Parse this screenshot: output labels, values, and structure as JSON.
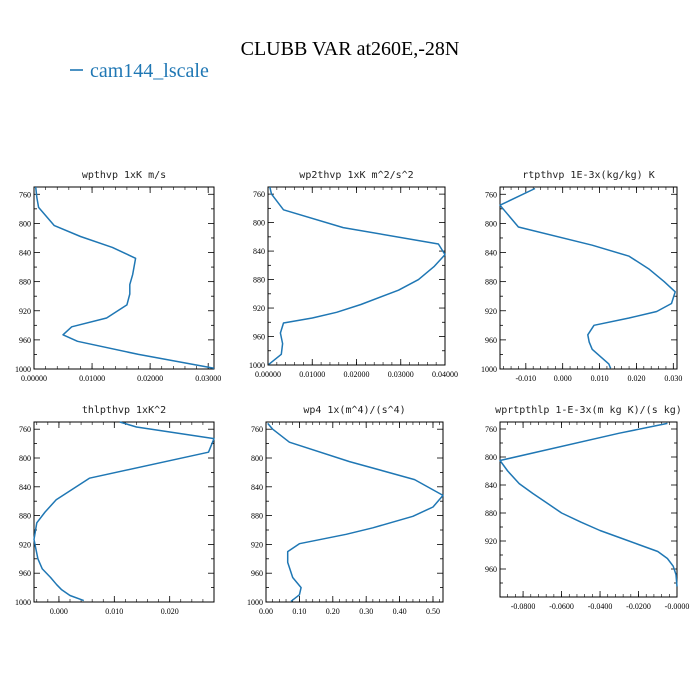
{
  "figure": {
    "title": "CLUBB VAR at260E,-28N",
    "legend": {
      "label": "cam144_lscale",
      "color": "#1f77b4",
      "placement": "top-left"
    }
  },
  "chart_data": [
    {
      "type": "line",
      "title": "wpthvp  1xK m/s",
      "xlim": [
        0,
        0.031
      ],
      "ylim": [
        1000,
        750
      ],
      "y_inverted": true,
      "x_ticks": [
        0,
        0.01,
        0.02,
        0.03
      ],
      "x_tick_labels": [
        "0.00000",
        "0.01000",
        "0.02000",
        "0.03000"
      ],
      "y_ticks": [
        760,
        800,
        840,
        880,
        920,
        960,
        1000
      ],
      "y_tick_labels": [
        "760",
        "800",
        "840",
        "880",
        "920",
        "960",
        "1000"
      ],
      "series": [
        {
          "x": [
            0.0003,
            0.0005,
            0.0008,
            0.0035,
            0.008,
            0.0135,
            0.0175,
            0.017,
            0.0165,
            0.0165,
            0.016,
            0.0125,
            0.0065,
            0.005,
            0.0075,
            0.018,
            0.031
          ],
          "y": [
            750,
            765,
            778,
            803,
            818,
            833,
            848,
            870,
            884,
            897,
            912,
            930,
            942,
            953,
            962,
            980,
            999
          ]
        }
      ]
    },
    {
      "type": "line",
      "title": "wp2thvp  1xK m^2/s^2",
      "xlim": [
        0,
        0.04
      ],
      "ylim": [
        1000,
        750
      ],
      "y_inverted": true,
      "x_ticks": [
        0,
        0.01,
        0.02,
        0.03,
        0.04
      ],
      "x_tick_labels": [
        "0.00000",
        "0.01000",
        "0.02000",
        "0.03000",
        "0.04000"
      ],
      "y_ticks": [
        760,
        800,
        840,
        880,
        920,
        960,
        1000
      ],
      "y_tick_labels": [
        "760",
        "800",
        "840",
        "880",
        "920",
        "960",
        "1000"
      ],
      "series": [
        {
          "x": [
            0.0004,
            0.0008,
            0.0035,
            0.017,
            0.0385,
            0.04,
            0.0375,
            0.034,
            0.0295,
            0.021,
            0.0155,
            0.01,
            0.0035,
            0.0028,
            0.0033,
            0.003,
            0.0002
          ],
          "y": [
            750,
            760,
            782,
            807,
            830,
            845,
            862,
            880,
            895,
            915,
            926,
            934,
            941,
            955,
            970,
            985,
            999
          ]
        }
      ]
    },
    {
      "type": "line",
      "title": "rtpthvp  1E-3x(kg/kg) K",
      "xlim": [
        -0.017,
        0.031
      ],
      "ylim": [
        1000,
        750
      ],
      "y_inverted": true,
      "x_ticks": [
        -0.01,
        0,
        0.01,
        0.02,
        0.03
      ],
      "x_tick_labels": [
        "-0.010",
        "0.000",
        "0.010",
        "0.020",
        "0.030"
      ],
      "y_ticks": [
        760,
        800,
        840,
        880,
        920,
        960,
        1000
      ],
      "y_tick_labels": [
        "760",
        "800",
        "840",
        "880",
        "920",
        "960",
        "1000"
      ],
      "series": [
        {
          "x": [
            -0.0075,
            -0.017,
            -0.012,
            0.008,
            0.018,
            0.0235,
            0.0275,
            0.0305,
            0.0295,
            0.0255,
            0.018,
            0.0085,
            0.0068,
            0.0072,
            0.008,
            0.0105,
            0.0125,
            0.013
          ],
          "y": [
            752,
            775,
            805,
            830,
            845,
            863,
            880,
            894,
            910,
            921,
            930,
            940,
            953,
            963,
            973,
            984,
            993,
            999
          ]
        }
      ]
    },
    {
      "type": "line",
      "title": "thlpthvp  1xK^2",
      "xlim": [
        -0.0045,
        0.028
      ],
      "ylim": [
        1000,
        750
      ],
      "y_inverted": true,
      "x_ticks": [
        0,
        0.01,
        0.02
      ],
      "x_tick_labels": [
        "0.000",
        "0.010",
        "0.020"
      ],
      "y_ticks": [
        760,
        800,
        840,
        880,
        920,
        960,
        1000
      ],
      "y_tick_labels": [
        "760",
        "800",
        "840",
        "880",
        "920",
        "960",
        "1000"
      ],
      "series": [
        {
          "x": [
            0.011,
            0.014,
            0.028,
            0.027,
            0.0055,
            -0.0005,
            -0.0025,
            -0.004,
            -0.0045,
            -0.0042,
            -0.0038,
            -0.003,
            -0.0015,
            -0.0004,
            0.0005,
            0.002,
            0.0045
          ],
          "y": [
            750,
            757,
            773,
            792,
            828,
            858,
            875,
            890,
            913,
            925,
            940,
            954,
            966,
            976,
            983,
            991,
            998
          ]
        }
      ]
    },
    {
      "type": "line",
      "title": "wp4   1x(m^4)/(s^4)",
      "xlim": [
        0,
        0.53
      ],
      "ylim": [
        1000,
        750
      ],
      "y_inverted": true,
      "x_ticks": [
        0,
        0.1,
        0.2,
        0.3,
        0.4,
        0.5
      ],
      "x_tick_labels": [
        "0.00",
        "0.10",
        "0.20",
        "0.30",
        "0.40",
        "0.50"
      ],
      "y_ticks": [
        760,
        800,
        840,
        880,
        920,
        960,
        1000
      ],
      "y_tick_labels": [
        "760",
        "800",
        "840",
        "880",
        "920",
        "960",
        "1000"
      ],
      "series": [
        {
          "x": [
            0.005,
            0.02,
            0.07,
            0.25,
            0.445,
            0.53,
            0.5,
            0.44,
            0.32,
            0.24,
            0.1,
            0.065,
            0.065,
            0.08,
            0.105,
            0.1,
            0.075
          ],
          "y": [
            752,
            760,
            778,
            805,
            830,
            852,
            868,
            881,
            897,
            906,
            919,
            930,
            945,
            966,
            980,
            990,
            999
          ]
        }
      ]
    },
    {
      "type": "line",
      "title": "wprtpthlp   1-E-3x(m kg K)/(s kg)",
      "xlim": [
        -0.092,
        0
      ],
      "ylim": [
        1000,
        750
      ],
      "y_inverted": true,
      "x_ticks": [
        -0.08,
        -0.06,
        -0.04,
        -0.02,
        0
      ],
      "x_tick_labels": [
        "-0.0800",
        "-0.0600",
        "-0.0400",
        "-0.0200",
        "-0.0000"
      ],
      "y_ticks": [
        760,
        800,
        840,
        880,
        920,
        960
      ],
      "y_tick_labels": [
        "760",
        "800",
        "840",
        "880",
        "920",
        "960"
      ],
      "series": [
        {
          "x": [
            -0.005,
            -0.03,
            -0.092,
            -0.088,
            -0.082,
            -0.075,
            -0.068,
            -0.06,
            -0.05,
            -0.04,
            -0.03,
            -0.02,
            -0.01,
            -0.005,
            -0.002,
            -0.0005,
            0
          ],
          "y": [
            752,
            766,
            805,
            820,
            838,
            852,
            865,
            880,
            893,
            905,
            915,
            925,
            935,
            945,
            956,
            968,
            985
          ]
        }
      ]
    }
  ]
}
